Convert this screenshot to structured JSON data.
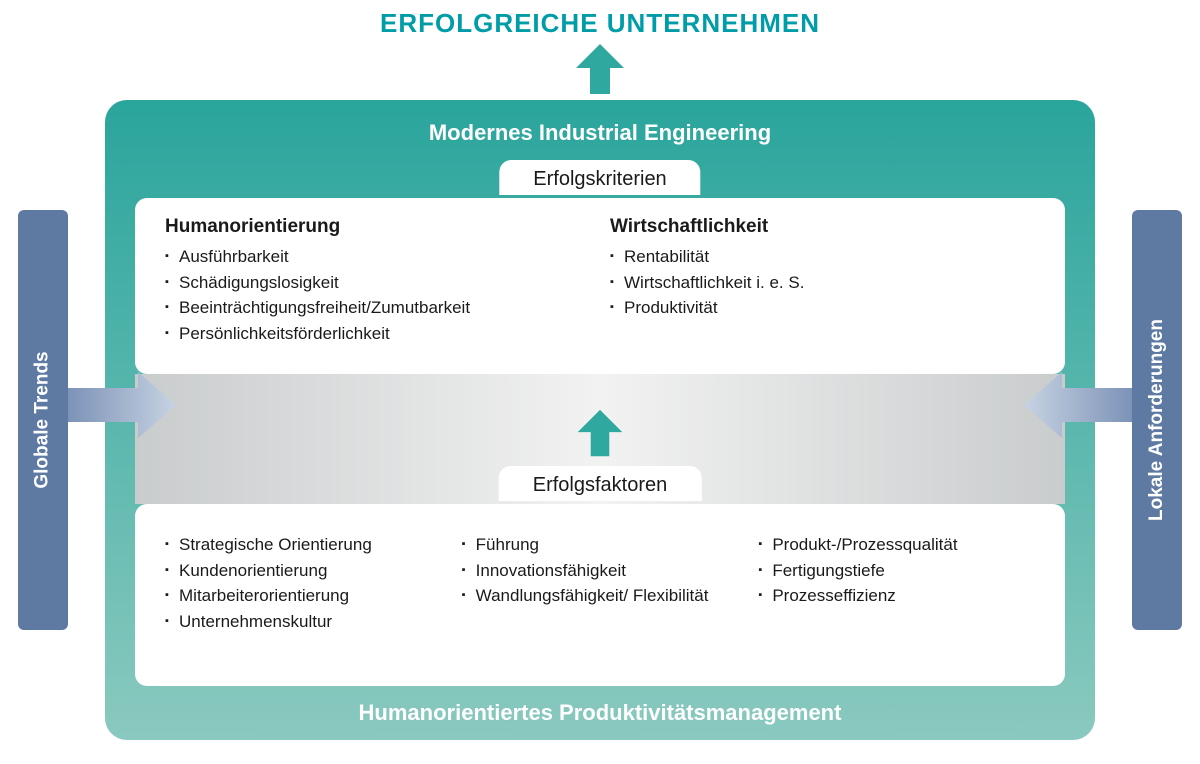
{
  "colors": {
    "teal_title": "#009da9",
    "teal_arrow": "#2fa9a0",
    "main_box_grad_top": "#2aa59c",
    "main_box_grad_bottom": "#8ac9bf",
    "side_bar": "#5e7aa3",
    "side_arrow_start": "#7c92b7",
    "side_arrow_end": "#c7d3e3",
    "gray_band_edge": "#c9cccd",
    "gray_band_center": "#f2f2f2",
    "text": "#1a1a1a",
    "white": "#ffffff"
  },
  "title": "ERFOLGREICHE UNTERNEHMEN",
  "main_header": "Modernes Industrial Engineering",
  "main_footer": "Humanorientiertes Produktivitätsmanagement",
  "side_left": "Globale Trends",
  "side_right": "Lokale Anforderungen",
  "kriterien": {
    "tab": "Erfolgskriterien",
    "left": {
      "heading": "Humanorientierung",
      "items": [
        "Ausführbarkeit",
        "Schädigungslosigkeit",
        "Beeinträchtigungsfreiheit/Zumutbarkeit",
        "Persönlichkeitsförderlichkeit"
      ]
    },
    "right": {
      "heading": "Wirtschaftlichkeit",
      "items": [
        "Rentabilität",
        "Wirtschaftlichkeit i. e. S.",
        "Produktivität"
      ]
    }
  },
  "faktoren": {
    "tab": "Erfolgsfaktoren",
    "col1": [
      "Strategische Orientierung",
      "Kundenorientierung",
      "Mitarbeiterorientierung",
      "Unternehmenskultur"
    ],
    "col2": [
      "Führung",
      "Innovationsfähigkeit",
      "Wandlungsfähigkeit/ Flexibilität"
    ],
    "col3": [
      "Produkt-/Prozessqualität",
      "Fertigungstiefe",
      "Prozesseffizienz"
    ]
  }
}
